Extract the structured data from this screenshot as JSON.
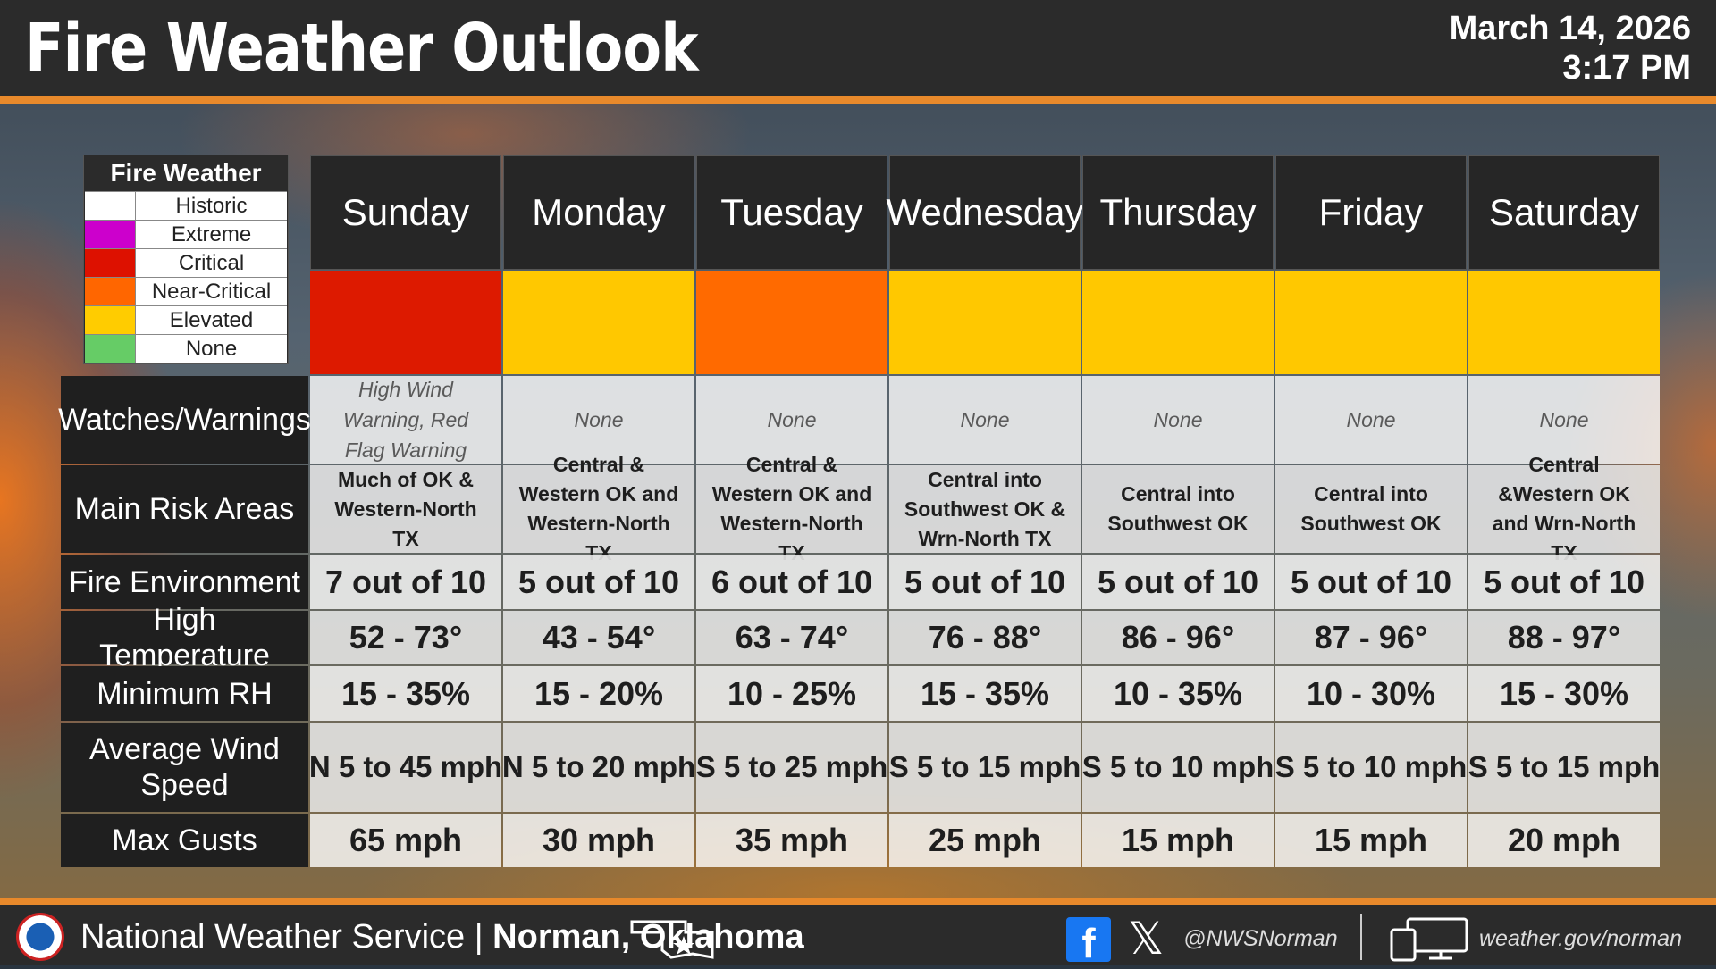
{
  "header": {
    "title": "Fire Weather Outlook",
    "date": "March 14, 2026",
    "time": "3:17 PM"
  },
  "legend": {
    "title": "Fire Weather",
    "items": [
      {
        "label": "Historic",
        "color": "#ffffff"
      },
      {
        "label": "Extreme",
        "color": "#cc00cc"
      },
      {
        "label": "Critical",
        "color": "#dd1100"
      },
      {
        "label": "Near-Critical",
        "color": "#ff6600"
      },
      {
        "label": "Elevated",
        "color": "#ffcc00"
      },
      {
        "label": "None",
        "color": "#66cc66"
      }
    ]
  },
  "row_labels": {
    "watches": "Watches/Warnings",
    "areas": "Main Risk Areas",
    "environment": "Fire Environment",
    "temperature": "High Temperature",
    "rh": "Minimum RH",
    "wind": "Average Wind Speed",
    "gusts": "Max Gusts"
  },
  "days": [
    {
      "name": "Sunday",
      "risk_level": "Critical",
      "risk_color": "#dd1a00",
      "watches": "High Wind Warning, Red Flag Warning",
      "areas": "Much of OK & Western-North TX",
      "environment": "7 out of 10",
      "temperature": "52 - 73°",
      "rh": "15 - 35%",
      "wind": "N 5 to 45 mph",
      "gusts": "65 mph"
    },
    {
      "name": "Monday",
      "risk_level": "Elevated",
      "risk_color": "#ffc800",
      "watches": "None",
      "areas": "Central & Western OK and Western-North TX",
      "environment": "5 out of 10",
      "temperature": "43 - 54°",
      "rh": "15 - 20%",
      "wind": "N 5 to 20 mph",
      "gusts": "30 mph"
    },
    {
      "name": "Tuesday",
      "risk_level": "Near-Critical",
      "risk_color": "#ff6a00",
      "watches": "None",
      "areas": "Central & Western OK and Western-North TX",
      "environment": "6 out of 10",
      "temperature": "63 - 74°",
      "rh": "10 - 25%",
      "wind": "S 5 to 25 mph",
      "gusts": "35 mph"
    },
    {
      "name": "Wednesday",
      "risk_level": "Elevated",
      "risk_color": "#ffc800",
      "watches": "None",
      "areas": "Central into Southwest OK & Wrn-North TX",
      "environment": "5 out of 10",
      "temperature": "76 - 88°",
      "rh": "15 - 35%",
      "wind": "S 5 to 15 mph",
      "gusts": "25 mph"
    },
    {
      "name": "Thursday",
      "risk_level": "Elevated",
      "risk_color": "#ffc800",
      "watches": "None",
      "areas": "Central into Southwest OK",
      "environment": "5 out of 10",
      "temperature": "86 - 96°",
      "rh": "10 - 35%",
      "wind": "S 5 to 10 mph",
      "gusts": "15 mph"
    },
    {
      "name": "Friday",
      "risk_level": "Elevated",
      "risk_color": "#ffc800",
      "watches": "None",
      "areas": "Central into Southwest OK",
      "environment": "5 out of 10",
      "temperature": "87 - 96°",
      "rh": "10 - 30%",
      "wind": "S 5 to 10 mph",
      "gusts": "15 mph"
    },
    {
      "name": "Saturday",
      "risk_level": "Elevated",
      "risk_color": "#ffc800",
      "watches": "None",
      "areas": "Central &Western OK and Wrn-North TX",
      "environment": "5 out of 10",
      "temperature": "88 - 97°",
      "rh": "15 - 30%",
      "wind": "S 5 to 15 mph",
      "gusts": "20 mph"
    }
  ],
  "footer": {
    "agency": "National Weather Service |",
    "office": "Norman, Oklahoma",
    "social_handle": "@NWSNorman",
    "website": "weather.gov/norman",
    "icons": [
      "nws-logo",
      "oklahoma-outline-icon",
      "facebook-icon",
      "x-icon",
      "computer-icon"
    ]
  }
}
